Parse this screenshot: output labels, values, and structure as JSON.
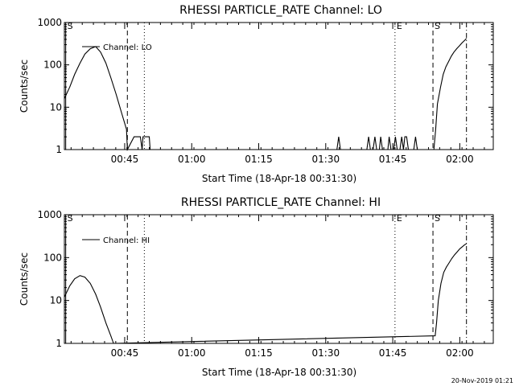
{
  "footer": {
    "timestamp": "20-Nov-2019 01:21"
  },
  "chart_data": [
    {
      "type": "line",
      "title": "RHESSI PARTICLE_RATE Channel: LO",
      "xlabel": "Start Time (18-Apr-18 00:31:30)",
      "ylabel": "Counts/sec",
      "yscale": "log",
      "ylim": [
        1,
        1000
      ],
      "xlim": [
        0,
        96
      ],
      "xlim_clock": [
        "00:31:30",
        "02:07:30"
      ],
      "x_unit": "minutes since 00:31:30",
      "xticks": [
        {
          "x": 13.5,
          "label": "00:45"
        },
        {
          "x": 28.5,
          "label": "01:00"
        },
        {
          "x": 43.5,
          "label": "01:15"
        },
        {
          "x": 58.5,
          "label": "01:30"
        },
        {
          "x": 73.5,
          "label": "01:45"
        },
        {
          "x": 88.5,
          "label": "02:00"
        }
      ],
      "yticks": [
        {
          "y": 1,
          "label": "1"
        },
        {
          "y": 10,
          "label": "10"
        },
        {
          "y": 100,
          "label": "100"
        },
        {
          "y": 1000,
          "label": "1000"
        }
      ],
      "legend": {
        "label": "Channel: LO",
        "placement": "top-left"
      },
      "markers": [
        {
          "x": 0.3,
          "label": "S",
          "style": "solid"
        },
        {
          "x": 14.1,
          "label": "",
          "style": "dashed"
        },
        {
          "x": 17.9,
          "label": "",
          "style": "dotted"
        },
        {
          "x": 74.0,
          "label": "E",
          "style": "dotted"
        },
        {
          "x": 82.5,
          "label": "S",
          "style": "dashed"
        },
        {
          "x": 90.0,
          "label": "",
          "style": "dashdot"
        }
      ],
      "series": [
        {
          "x": [
            0,
            1.2,
            2.3,
            3.5,
            4.6,
            5.8,
            7.0,
            8.1,
            9.3,
            10.4,
            11.6,
            12.7,
            13.9,
            14.1,
            15.6,
            15.8,
            17.0,
            17.4,
            17.6,
            17.9,
            19.0,
            19.2,
            34.6,
            35.0,
            35.3,
            35.7,
            61.0,
            61.4,
            61.8,
            67.7,
            68.1,
            68.5,
            69.1,
            69.5,
            69.9,
            70.5,
            70.8,
            71.2,
            72.4,
            72.7,
            73.1,
            73.7,
            74.1,
            74.5,
            75.1,
            75.5,
            75.9,
            76.2,
            76.6,
            77.0,
            78.2,
            78.6,
            79.0,
            82.7,
            83.1,
            83.5,
            84.2,
            84.8,
            85.4,
            86.0,
            86.6,
            87.2,
            87.8,
            88.4,
            89.0,
            89.6,
            90.0
          ],
          "y": [
            16,
            30,
            60,
            110,
            180,
            240,
            270,
            200,
            110,
            50,
            20,
            8,
            3,
            1,
            2,
            2,
            2,
            1,
            2,
            2,
            2,
            1,
            1,
            1,
            1,
            1,
            1,
            2,
            1,
            1,
            2,
            1,
            1,
            2,
            1,
            1,
            2,
            1,
            1,
            2,
            1,
            1,
            2,
            1,
            1,
            2,
            1,
            2,
            2,
            1,
            1,
            2,
            1,
            1,
            3,
            12,
            30,
            60,
            90,
            120,
            160,
            200,
            240,
            280,
            330,
            380,
            420
          ]
        }
      ]
    },
    {
      "type": "line",
      "title": "RHESSI PARTICLE_RATE Channel: HI",
      "xlabel": "Start Time (18-Apr-18 00:31:30)",
      "ylabel": "Counts/sec",
      "yscale": "log",
      "ylim": [
        1,
        1000
      ],
      "xlim": [
        0,
        96
      ],
      "xlim_clock": [
        "00:31:30",
        "02:07:30"
      ],
      "x_unit": "minutes since 00:31:30",
      "xticks": [
        {
          "x": 13.5,
          "label": "00:45"
        },
        {
          "x": 28.5,
          "label": "01:00"
        },
        {
          "x": 43.5,
          "label": "01:15"
        },
        {
          "x": 58.5,
          "label": "01:30"
        },
        {
          "x": 73.5,
          "label": "01:45"
        },
        {
          "x": 88.5,
          "label": "02:00"
        }
      ],
      "yticks": [
        {
          "y": 1,
          "label": "1"
        },
        {
          "y": 10,
          "label": "10"
        },
        {
          "y": 100,
          "label": "100"
        },
        {
          "y": 1000,
          "label": "1000"
        }
      ],
      "legend": {
        "label": "Channel: HI",
        "placement": "top-left"
      },
      "markers": [
        {
          "x": 0.3,
          "label": "S",
          "style": "solid"
        },
        {
          "x": 14.1,
          "label": "",
          "style": "dashed"
        },
        {
          "x": 17.9,
          "label": "",
          "style": "dotted"
        },
        {
          "x": 74.0,
          "label": "E",
          "style": "dotted"
        },
        {
          "x": 82.5,
          "label": "S",
          "style": "dashed"
        },
        {
          "x": 90.0,
          "label": "",
          "style": "dashdot"
        }
      ],
      "series": [
        {
          "x": [
            0,
            1.2,
            2.3,
            3.5,
            4.6,
            5.8,
            7.0,
            8.1,
            9.3,
            10.4,
            11.0,
            83.0,
            83.3,
            83.7,
            84.3,
            84.9,
            85.5,
            86.1,
            86.7,
            87.3,
            87.9,
            88.5,
            89.1,
            89.6,
            90.0
          ],
          "y": [
            12,
            22,
            32,
            38,
            35,
            25,
            14,
            7,
            3,
            1.5,
            1,
            1.5,
            3,
            10,
            25,
            45,
            60,
            75,
            95,
            115,
            135,
            160,
            180,
            200,
            210
          ]
        }
      ]
    }
  ]
}
